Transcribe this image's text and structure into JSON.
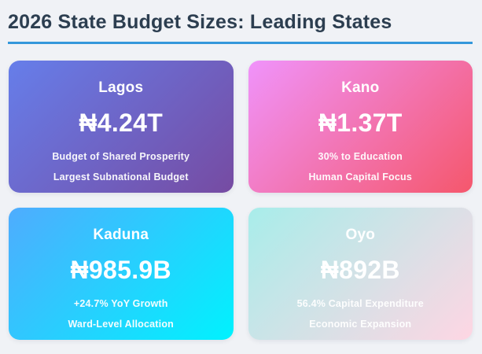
{
  "page": {
    "title": "2026 State Budget Sizes: Leading States",
    "title_color": "#2c3e50",
    "underline_color": "#3498db",
    "background_color": "#f0f2f6"
  },
  "chart_data": {
    "type": "table",
    "title": "2026 State Budget Sizes: Leading States",
    "categories": [
      "Lagos",
      "Kano",
      "Kaduna",
      "Oyo"
    ],
    "values_label": [
      "₦4.24T",
      "₦1.37T",
      "₦985.9B",
      "₦892B"
    ],
    "values_naira_billions": [
      4240,
      1370,
      985.9,
      892
    ],
    "notes": [
      [
        "Budget of Shared Prosperity",
        "Largest Subnational Budget"
      ],
      [
        "30% to Education",
        "Human Capital Focus"
      ],
      [
        "+24.7% YoY Growth",
        "Ward-Level Allocation"
      ],
      [
        "56.4% Capital Expenditure",
        "Economic Expansion"
      ]
    ]
  },
  "cards": [
    {
      "state": "Lagos",
      "value": "₦4.24T",
      "line1": "Budget of Shared Prosperity",
      "line2": "Largest Subnational Budget",
      "gradient_start": "#667eea",
      "gradient_end": "#764ba2"
    },
    {
      "state": "Kano",
      "value": "₦1.37T",
      "line1": "30% to Education",
      "line2": "Human Capital Focus",
      "gradient_start": "#f093fb",
      "gradient_end": "#f5576c"
    },
    {
      "state": "Kaduna",
      "value": "₦985.9B",
      "line1": "+24.7% YoY Growth",
      "line2": "Ward-Level Allocation",
      "gradient_start": "#4facfe",
      "gradient_end": "#00f2fe"
    },
    {
      "state": "Oyo",
      "value": "₦892B",
      "line1": "56.4% Capital Expenditure",
      "line2": "Economic Expansion",
      "gradient_start": "#a8edea",
      "gradient_end": "#fed6e3"
    }
  ]
}
